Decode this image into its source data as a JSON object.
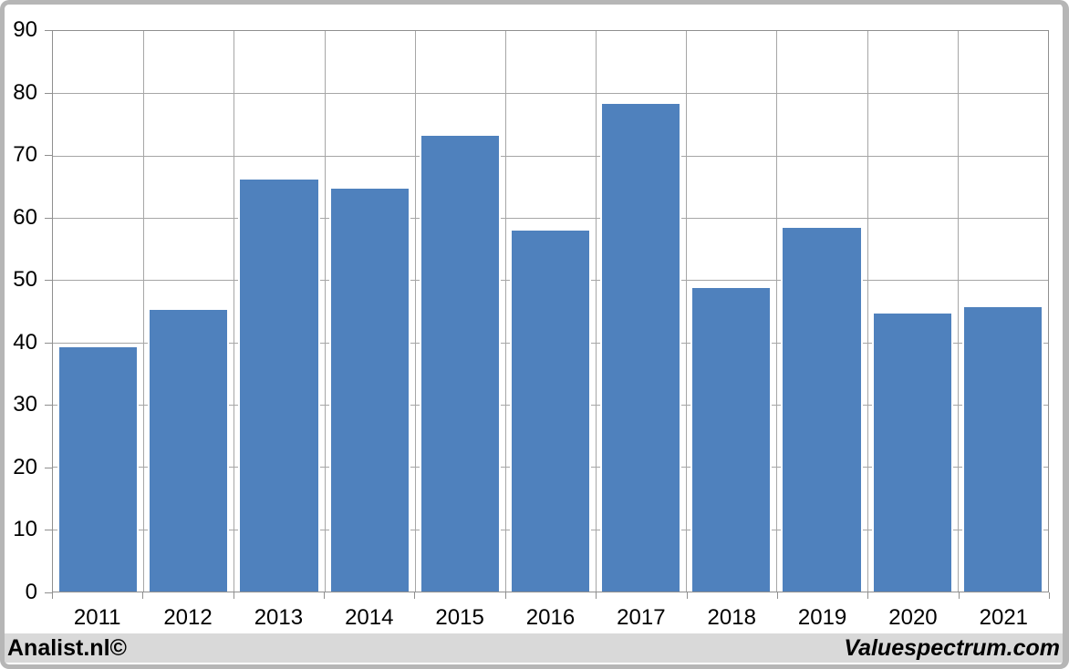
{
  "chart_data": {
    "type": "bar",
    "title": "",
    "xlabel": "",
    "ylabel": "",
    "categories": [
      "2011",
      "2012",
      "2013",
      "2014",
      "2015",
      "2016",
      "2017",
      "2018",
      "2019",
      "2020",
      "2021"
    ],
    "values": [
      39.5,
      45.5,
      66.5,
      65,
      73.5,
      58.2,
      78.6,
      49,
      58.7,
      45,
      46
    ],
    "ylim": [
      0,
      90
    ],
    "yticks": [
      0,
      10,
      20,
      30,
      40,
      50,
      60,
      70,
      80,
      90
    ],
    "grid": true,
    "legend": false,
    "bar_color": "#4f81bd",
    "grid_color": "#a6a6a6",
    "axis_color": "#8f8f8f",
    "tick_color": "#8f8f8f"
  },
  "footer": {
    "left_text": "Analist.nl©",
    "right_text": "Valuespectrum.com"
  },
  "colors": {
    "frame_border": "#b6b6b6",
    "footer_background": "#d9d9d9",
    "chart_background": "#ffffff",
    "text": "#000000"
  }
}
